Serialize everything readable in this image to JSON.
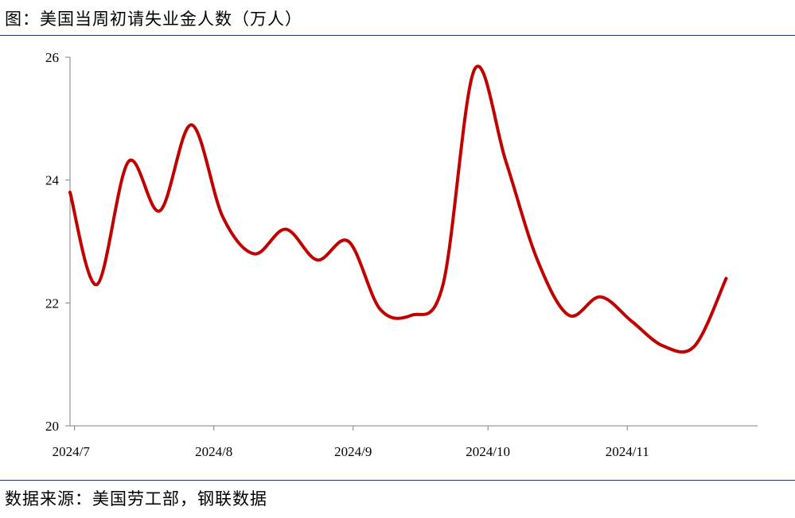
{
  "title": "图：美国当周初请失业金人数（万人）",
  "source": "数据来源：美国劳工部，钢联数据",
  "colors": {
    "line": "#c00000",
    "rule": "#1f3864",
    "axis": "#808080"
  },
  "chart_data": {
    "type": "line",
    "title": "图：美国当周初请失业金人数（万人）",
    "xlabel": "",
    "ylabel": "",
    "ylim": [
      20,
      26
    ],
    "yticks": [
      20,
      22,
      24,
      26
    ],
    "xticks": [
      {
        "label": "2024/7",
        "value": "2024-07-01"
      },
      {
        "label": "2024/8",
        "value": "2024-08-01"
      },
      {
        "label": "2024/9",
        "value": "2024-09-01"
      },
      {
        "label": "2024/10",
        "value": "2024-10-01"
      },
      {
        "label": "2024/11",
        "value": "2024-11-01"
      }
    ],
    "xlim": [
      "2024-06-30",
      "2024-11-30"
    ],
    "grid": false,
    "legend": "none",
    "series": [
      {
        "name": "",
        "x": [
          "2024-06-30",
          "2024-07-06",
          "2024-07-13",
          "2024-07-20",
          "2024-07-27",
          "2024-08-03",
          "2024-08-10",
          "2024-08-17",
          "2024-08-24",
          "2024-08-31",
          "2024-09-07",
          "2024-09-14",
          "2024-09-21",
          "2024-09-28",
          "2024-10-05",
          "2024-10-12",
          "2024-10-19",
          "2024-10-26",
          "2024-11-02",
          "2024-11-09",
          "2024-11-16",
          "2024-11-23"
        ],
        "values": [
          23.8,
          22.3,
          24.3,
          23.5,
          24.9,
          23.4,
          22.8,
          23.2,
          22.7,
          23.0,
          21.9,
          21.8,
          22.3,
          25.8,
          24.3,
          22.7,
          21.8,
          22.1,
          21.7,
          21.3,
          21.3,
          22.4
        ]
      }
    ]
  }
}
